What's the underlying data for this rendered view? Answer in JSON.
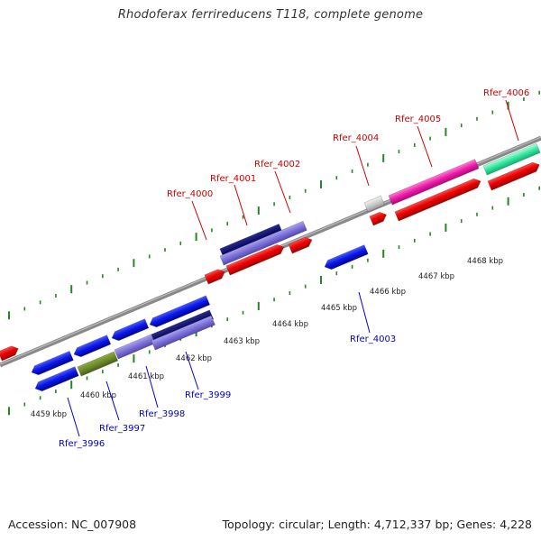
{
  "title": "Rhodoferax ferrireducens T118, complete genome",
  "footer": {
    "accession": "Accession: NC_007908",
    "genome_info": "Topology: circular; Length: 4,712,337 bp; Genes: 4,228"
  },
  "scale_labels": [
    "4459 kbp",
    "4460 kbp",
    "4461 kbp",
    "4462 kbp",
    "4463 kbp",
    "4464 kbp",
    "4465 kbp",
    "4466 kbp",
    "4467 kbp",
    "4468 kbp"
  ],
  "forward_genes": [
    "Rfer_4000",
    "Rfer_4001",
    "Rfer_4002",
    "Rfer_4004",
    "Rfer_4005",
    "Rfer_4006"
  ],
  "reverse_genes": [
    "Rfer_3996",
    "Rfer_3997",
    "Rfer_3998",
    "Rfer_3999",
    "Rfer_4003"
  ],
  "colors": {
    "forward": "#cc0000",
    "reverse": "#0000cc",
    "tick": "#228822",
    "backbone": "#888888"
  }
}
